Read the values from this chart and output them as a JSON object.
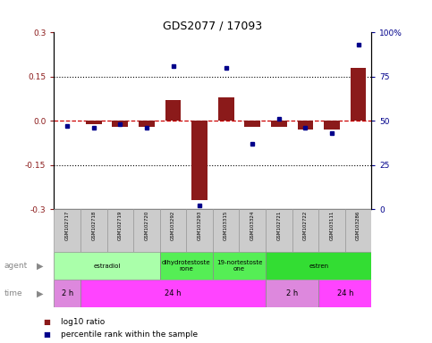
{
  "title": "GDS2077 / 17093",
  "samples": [
    "GSM102717",
    "GSM102718",
    "GSM102719",
    "GSM102720",
    "GSM103292",
    "GSM103293",
    "GSM103315",
    "GSM103324",
    "GSM102721",
    "GSM102722",
    "GSM103111",
    "GSM103286"
  ],
  "log10_ratio": [
    0.0,
    -0.01,
    -0.02,
    -0.02,
    0.07,
    -0.27,
    0.08,
    -0.02,
    -0.02,
    -0.03,
    -0.03,
    0.18
  ],
  "percentile_rank": [
    47,
    46,
    48,
    46,
    81,
    2,
    80,
    37,
    51,
    46,
    43,
    93
  ],
  "ylim_left": [
    -0.3,
    0.3
  ],
  "ylim_right": [
    0,
    100
  ],
  "yticks_left": [
    -0.3,
    -0.15,
    0.0,
    0.15,
    0.3
  ],
  "yticks_right": [
    0,
    25,
    50,
    75,
    100
  ],
  "bar_color": "#8B1A1A",
  "dot_color": "#00008B",
  "hline_color": "#CC0000",
  "gridline_color": "#000000",
  "agent_groups": [
    {
      "label": "estradiol",
      "start": 0,
      "end": 4,
      "color": "#AAFFAA"
    },
    {
      "label": "dihydrotestoste\nrone",
      "start": 4,
      "end": 6,
      "color": "#55EE55"
    },
    {
      "label": "19-nortestoste\none",
      "start": 6,
      "end": 8,
      "color": "#55EE55"
    },
    {
      "label": "estren",
      "start": 8,
      "end": 12,
      "color": "#33DD33"
    }
  ],
  "time_groups": [
    {
      "label": "2 h",
      "start": 0,
      "end": 1,
      "color": "#DD88DD"
    },
    {
      "label": "24 h",
      "start": 1,
      "end": 8,
      "color": "#FF44FF"
    },
    {
      "label": "2 h",
      "start": 8,
      "end": 10,
      "color": "#DD88DD"
    },
    {
      "label": "24 h",
      "start": 10,
      "end": 12,
      "color": "#FF44FF"
    }
  ],
  "legend_items": [
    {
      "color": "#8B1A1A",
      "label": "log10 ratio"
    },
    {
      "color": "#00008B",
      "label": "percentile rank within the sample"
    }
  ],
  "background_color": "#FFFFFF",
  "sample_box_color": "#CCCCCC",
  "sample_box_edge": "#999999",
  "arrow_color": "#999999"
}
